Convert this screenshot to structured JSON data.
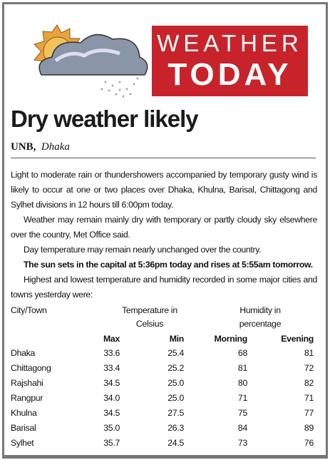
{
  "header": {
    "word1": "WEATHER",
    "word2": "TODAY"
  },
  "headline": "Dry weather likely",
  "byline": {
    "agency": "UNB,",
    "place": "Dhaka"
  },
  "paragraphs": [
    "Light to moderate rain or thundershowers accompanied by temporary gusty wind is likely to occur at one or two places over Dhaka, Khulna, Barisal, Chittagong and Sylhet divisions in 12 hours till 6:00pm today.",
    "Weather may remain mainly dry with temporary or partly cloudy sky elsewhere over the country, Met Office said.",
    "Day temperature may remain nearly unchanged over the country.",
    "The sun sets in the capital at 5:36pm today and rises at 5:55am tomorrow.",
    "Highest and lowest temperature and humidity recorded in some major cities and towns yesterday were:"
  ],
  "table": {
    "group_headers": [
      "City/Town",
      "Temperature in Celsius",
      "Humidity in percentage"
    ],
    "columns": [
      "Max",
      "Min",
      "Morning",
      "Evening"
    ],
    "rows": [
      [
        "Dhaka",
        "33.6",
        "25.4",
        "68",
        "81"
      ],
      [
        "Chittagong",
        "33.4",
        "25.2",
        "81",
        "72"
      ],
      [
        "Rajshahi",
        "34.5",
        "25.0",
        "80",
        "82"
      ],
      [
        "Rangpur",
        "34.0",
        "25.0",
        "71",
        "71"
      ],
      [
        "Khulna",
        "34.5",
        "27.5",
        "75",
        "77"
      ],
      [
        "Barisal",
        "35.0",
        "26.3",
        "84",
        "89"
      ],
      [
        "Sylhet",
        "35.7",
        "24.5",
        "73",
        "76"
      ]
    ]
  }
}
